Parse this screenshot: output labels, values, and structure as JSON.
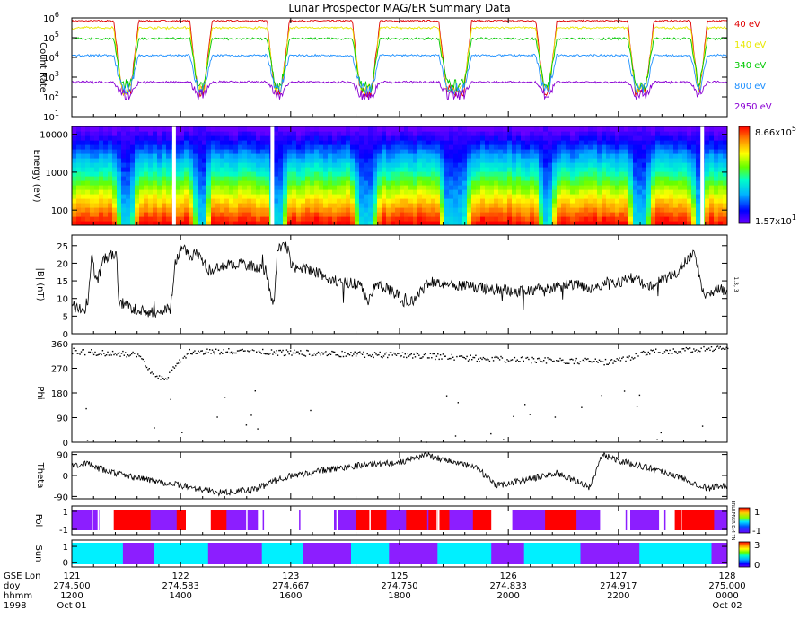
{
  "title": "Lunar Prospector MAG/ER Summary Data",
  "colors": {
    "c40": "#e00000",
    "c140": "#e8e800",
    "c340": "#00c800",
    "c800": "#1e90ff",
    "c2950": "#8a00d4",
    "pol_pos": "#ff0000",
    "pol_neg": "#8c1eff",
    "pol_white": "#ffffff",
    "sun_lit": "#00f0ff",
    "sun_dark": "#8c1eff"
  },
  "chart_data": {
    "type": "multi-panel timeseries",
    "x": {
      "range": [
        274.5,
        275.0
      ],
      "row_labels": [
        "GSE Lon",
        "doy",
        "hhmm",
        "1998"
      ],
      "ticks": [
        {
          "doy": 274.5,
          "lon": "121",
          "doy_label": "274.500",
          "hhmm": "1200",
          "date": "Oct 01"
        },
        {
          "doy": 274.583,
          "lon": "122",
          "doy_label": "274.583",
          "hhmm": "1400",
          "date": ""
        },
        {
          "doy": 274.667,
          "lon": "123",
          "doy_label": "274.667",
          "hhmm": "1600",
          "date": ""
        },
        {
          "doy": 274.75,
          "lon": "125",
          "doy_label": "274.750",
          "hhmm": "1800",
          "date": ""
        },
        {
          "doy": 274.833,
          "lon": "126",
          "doy_label": "274.833",
          "hhmm": "2000",
          "date": ""
        },
        {
          "doy": 274.917,
          "lon": "127",
          "doy_label": "274.917",
          "hhmm": "2200",
          "date": ""
        },
        {
          "doy": 275.0,
          "lon": "128",
          "doy_label": "275.000",
          "hhmm": "0000",
          "date": "Oct 02"
        }
      ]
    },
    "panels": {
      "count_rate": {
        "ylabel": "Count Rate",
        "scale": "log",
        "ylim": [
          10,
          1000000
        ],
        "ytick_exponents": [
          "6",
          "5",
          "4",
          "3",
          "2",
          "1"
        ],
        "wake_intervals": [
          [
            274.535,
            274.548
          ],
          [
            274.593,
            274.604
          ],
          [
            274.652,
            274.663
          ],
          [
            274.717,
            274.732
          ],
          [
            274.783,
            274.802
          ],
          [
            274.857,
            274.867
          ],
          [
            274.927,
            274.941
          ],
          [
            274.975,
            274.982
          ]
        ],
        "series": [
          {
            "name": "40 eV",
            "label": "40 eV",
            "color_key": "c40",
            "day": 5.85,
            "night": 2.3
          },
          {
            "name": "140 eV",
            "label": "140 eV",
            "color_key": "c140",
            "day": 5.5,
            "night": 2.4
          },
          {
            "name": "340 eV",
            "label": "340 eV",
            "color_key": "c340",
            "day": 4.95,
            "night": 2.6
          },
          {
            "name": "800 eV",
            "label": "800 eV",
            "color_key": "c800",
            "day": 4.1,
            "night": 2.4
          },
          {
            "name": "2950 eV",
            "label": "2950 eV",
            "color_key": "c2950",
            "day": 2.75,
            "night": 2.1
          }
        ]
      },
      "spectrogram": {
        "ylabel": "Energy (eV)",
        "scale": "log",
        "ylim": [
          40,
          16000
        ],
        "yticks": [
          "10000",
          "1000",
          "100"
        ],
        "colorbar_max": "8.66x10^5",
        "colorbar_min": "1.57x10^1",
        "max_mantissa": "8.66",
        "max_exp": "5",
        "min_mantissa": "1.57",
        "min_exp": "1",
        "data_gaps": [
          274.578,
          274.653,
          274.981
        ]
      },
      "b_magnitude": {
        "ylabel": "|B| (nT)",
        "ylim": [
          0,
          28
        ],
        "yticks": [
          "25",
          "20",
          "15",
          "10",
          "5",
          "0"
        ],
        "side_label": "1.3, 3",
        "anchors": [
          [
            274.5,
            8
          ],
          [
            274.512,
            7
          ],
          [
            274.515,
            22
          ],
          [
            274.519,
            14
          ],
          [
            274.524,
            21
          ],
          [
            274.534,
            23
          ],
          [
            274.536,
            9
          ],
          [
            274.548,
            7
          ],
          [
            274.56,
            6
          ],
          [
            274.575,
            7
          ],
          [
            274.579,
            20
          ],
          [
            274.584,
            25
          ],
          [
            274.59,
            22
          ],
          [
            274.596,
            23
          ],
          [
            274.604,
            18
          ],
          [
            274.612,
            19
          ],
          [
            274.63,
            20
          ],
          [
            274.648,
            18
          ],
          [
            274.654,
            8
          ],
          [
            274.657,
            24
          ],
          [
            274.664,
            25
          ],
          [
            274.668,
            19
          ],
          [
            274.684,
            18
          ],
          [
            274.7,
            15
          ],
          [
            274.72,
            14
          ],
          [
            274.726,
            9
          ],
          [
            274.732,
            14
          ],
          [
            274.745,
            12
          ],
          [
            274.757,
            8
          ],
          [
            274.773,
            15
          ],
          [
            274.79,
            14
          ],
          [
            274.81,
            13
          ],
          [
            274.84,
            12
          ],
          [
            274.867,
            13
          ],
          [
            274.88,
            14
          ],
          [
            274.9,
            13
          ],
          [
            274.93,
            16
          ],
          [
            274.94,
            13
          ],
          [
            274.96,
            17
          ],
          [
            274.975,
            23
          ],
          [
            274.983,
            10
          ],
          [
            274.994,
            13
          ],
          [
            275.0,
            12
          ]
        ]
      },
      "phi": {
        "ylabel": "Phi",
        "ylim": [
          0,
          360
        ],
        "yticks": [
          "360",
          "270",
          "180",
          "90",
          "0"
        ],
        "anchors": [
          [
            274.5,
            335
          ],
          [
            274.55,
            320
          ],
          [
            274.556,
            290
          ],
          [
            274.563,
            240
          ],
          [
            274.57,
            230
          ],
          [
            274.58,
            290
          ],
          [
            274.59,
            335
          ],
          [
            274.65,
            330
          ],
          [
            274.7,
            325
          ],
          [
            274.76,
            320
          ],
          [
            274.82,
            305
          ],
          [
            274.87,
            300
          ],
          [
            274.91,
            295
          ],
          [
            274.94,
            330
          ],
          [
            275.0,
            345
          ]
        ]
      },
      "theta": {
        "ylabel": "Theta",
        "ylim": [
          -100,
          100
        ],
        "yticks": [
          "90",
          "0",
          "-90"
        ],
        "anchors": [
          [
            274.5,
            40
          ],
          [
            274.51,
            55
          ],
          [
            274.52,
            30
          ],
          [
            274.54,
            0
          ],
          [
            274.56,
            -20
          ],
          [
            274.59,
            -50
          ],
          [
            274.615,
            -75
          ],
          [
            274.64,
            -60
          ],
          [
            274.66,
            -10
          ],
          [
            274.69,
            20
          ],
          [
            274.72,
            45
          ],
          [
            274.75,
            55
          ],
          [
            274.77,
            90
          ],
          [
            274.79,
            60
          ],
          [
            274.81,
            30
          ],
          [
            274.823,
            -45
          ],
          [
            274.84,
            -25
          ],
          [
            274.87,
            10
          ],
          [
            274.895,
            -50
          ],
          [
            274.905,
            90
          ],
          [
            274.92,
            60
          ],
          [
            274.95,
            20
          ],
          [
            274.972,
            -25
          ],
          [
            274.985,
            -55
          ],
          [
            275.0,
            -40
          ]
        ]
      },
      "polarity": {
        "ylabel": "Pol",
        "ylim": [
          -1.6,
          1.6
        ],
        "yticks": [
          "1",
          "-1"
        ],
        "side_label": "ERLRPRSR D:4 TN",
        "segments": [
          [
            274.5,
            274.521,
            "neg"
          ],
          [
            274.521,
            274.532,
            "white"
          ],
          [
            274.532,
            274.56,
            "pos"
          ],
          [
            274.56,
            274.58,
            "neg"
          ],
          [
            274.58,
            274.587,
            "pos"
          ],
          [
            274.587,
            274.606,
            "white"
          ],
          [
            274.606,
            274.618,
            "pos"
          ],
          [
            274.618,
            274.642,
            "neg"
          ],
          [
            274.642,
            274.7,
            "white"
          ],
          [
            274.7,
            274.717,
            "neg"
          ],
          [
            274.717,
            274.74,
            "pos"
          ],
          [
            274.74,
            274.755,
            "neg"
          ],
          [
            274.755,
            274.788,
            "pos"
          ],
          [
            274.788,
            274.806,
            "neg"
          ],
          [
            274.806,
            274.82,
            "pos"
          ],
          [
            274.82,
            274.836,
            "white"
          ],
          [
            274.836,
            274.861,
            "neg"
          ],
          [
            274.861,
            274.885,
            "pos"
          ],
          [
            274.885,
            274.903,
            "neg"
          ],
          [
            274.903,
            274.926,
            "white"
          ],
          [
            274.926,
            274.948,
            "neg"
          ],
          [
            274.948,
            274.96,
            "white"
          ],
          [
            274.96,
            274.99,
            "pos"
          ],
          [
            274.99,
            275.0,
            "neg"
          ]
        ]
      },
      "sun": {
        "ylabel": "Sun",
        "ylim": [
          -0.3,
          1.4
        ],
        "yticks": [
          "1",
          "0"
        ],
        "colorbar_max": "3",
        "colorbar_min": "0",
        "segments": [
          [
            274.5,
            274.539,
            "lit"
          ],
          [
            274.539,
            274.563,
            "dark"
          ],
          [
            274.563,
            274.604,
            "lit"
          ],
          [
            274.604,
            274.645,
            "dark"
          ],
          [
            274.645,
            274.676,
            "lit"
          ],
          [
            274.676,
            274.713,
            "dark"
          ],
          [
            274.713,
            274.742,
            "lit"
          ],
          [
            274.742,
            274.779,
            "dark"
          ],
          [
            274.779,
            274.82,
            "lit"
          ],
          [
            274.82,
            274.845,
            "dark"
          ],
          [
            274.845,
            274.888,
            "lit"
          ],
          [
            274.888,
            274.933,
            "dark"
          ],
          [
            274.933,
            274.988,
            "lit"
          ],
          [
            274.988,
            275.0,
            "dark"
          ]
        ]
      }
    }
  }
}
